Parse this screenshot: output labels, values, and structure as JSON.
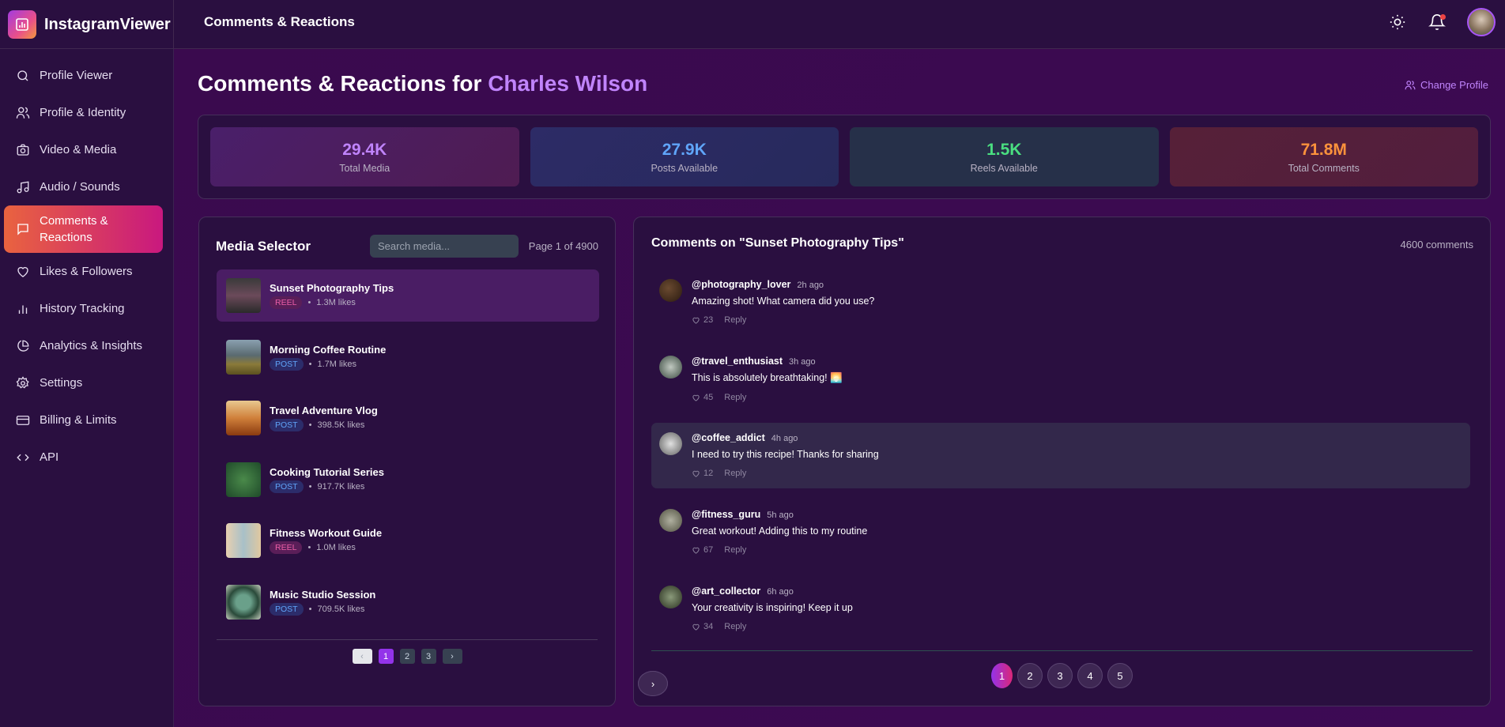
{
  "app": {
    "name": "InstagramViewer",
    "header_title": "Comments & Reactions",
    "notification_dot": true
  },
  "sidebar": {
    "items": [
      {
        "label": "Profile Viewer",
        "icon": "search-icon"
      },
      {
        "label": "Profile & Identity",
        "icon": "users-icon"
      },
      {
        "label": "Video & Media",
        "icon": "camera-icon"
      },
      {
        "label": "Audio / Sounds",
        "icon": "music-icon"
      },
      {
        "label": "Comments & Reactions",
        "icon": "message-icon",
        "active": true
      },
      {
        "label": "Likes & Followers",
        "icon": "heart-icon"
      },
      {
        "label": "History Tracking",
        "icon": "bar-chart-icon"
      },
      {
        "label": "Analytics & Insights",
        "icon": "pie-chart-icon"
      },
      {
        "label": "Settings",
        "icon": "gear-icon"
      },
      {
        "label": "Billing & Limits",
        "icon": "credit-card-icon"
      },
      {
        "label": "API",
        "icon": "code-icon"
      }
    ]
  },
  "page": {
    "title_prefix": "Comments & Reactions for",
    "profile_name": "Charles Wilson",
    "change_profile": "Change Profile"
  },
  "stats": [
    {
      "value": "29.4K",
      "label": "Total Media",
      "color": "#c084fc"
    },
    {
      "value": "27.9K",
      "label": "Posts Available",
      "color": "#60a5fa"
    },
    {
      "value": "1.5K",
      "label": "Reels Available",
      "color": "#4ade80"
    },
    {
      "value": "71.8M",
      "label": "Total Comments",
      "color": "#fb923c"
    }
  ],
  "media": {
    "title": "Media Selector",
    "search_placeholder": "Search media...",
    "page_info": "Page 1 of 4900",
    "items": [
      {
        "title": "Sunset Photography Tips",
        "type": "REEL",
        "likes": "1.3M likes",
        "selected": true
      },
      {
        "title": "Morning Coffee Routine",
        "type": "POST",
        "likes": "1.7M likes"
      },
      {
        "title": "Travel Adventure Vlog",
        "type": "POST",
        "likes": "398.5K likes"
      },
      {
        "title": "Cooking Tutorial Series",
        "type": "POST",
        "likes": "917.7K likes"
      },
      {
        "title": "Fitness Workout Guide",
        "type": "REEL",
        "likes": "1.0M likes"
      },
      {
        "title": "Music Studio Session",
        "type": "POST",
        "likes": "709.5K likes"
      }
    ],
    "pagination": {
      "pages": [
        "1",
        "2",
        "3"
      ],
      "current": "1",
      "prev": "‹",
      "next": "›"
    }
  },
  "comments": {
    "title": "Comments on \"Sunset Photography Tips\"",
    "count": "4600 comments",
    "reply_label": "Reply",
    "items": [
      {
        "user": "@photography_lover",
        "time": "2h ago",
        "text": "Amazing shot! What camera did you use?",
        "likes": "23"
      },
      {
        "user": "@travel_enthusiast",
        "time": "3h ago",
        "text": "This is absolutely breathtaking! 🌅",
        "likes": "45"
      },
      {
        "user": "@coffee_addict",
        "time": "4h ago",
        "text": "I need to try this recipe! Thanks for sharing",
        "likes": "12",
        "highlighted": true
      },
      {
        "user": "@fitness_guru",
        "time": "5h ago",
        "text": "Great workout! Adding this to my routine",
        "likes": "67"
      },
      {
        "user": "@art_collector",
        "time": "6h ago",
        "text": "Your creativity is inspiring! Keep it up",
        "likes": "34"
      }
    ],
    "pagination": {
      "pages": [
        "1",
        "2",
        "3",
        "4",
        "5"
      ],
      "current": "1",
      "prev": "‹",
      "next": "›"
    }
  }
}
